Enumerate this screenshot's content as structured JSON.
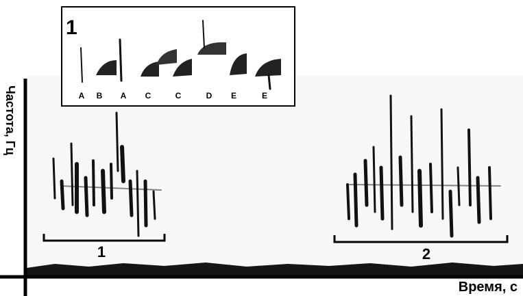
{
  "inset": {
    "label": "1",
    "syllables": [
      "A",
      "B",
      "A",
      "C",
      "C",
      "D",
      "E",
      "E"
    ]
  },
  "axes": {
    "y_label": "Частота, Гц",
    "x_label": "Время, с"
  },
  "segments": [
    {
      "label": "1"
    },
    {
      "label": "2"
    }
  ]
}
